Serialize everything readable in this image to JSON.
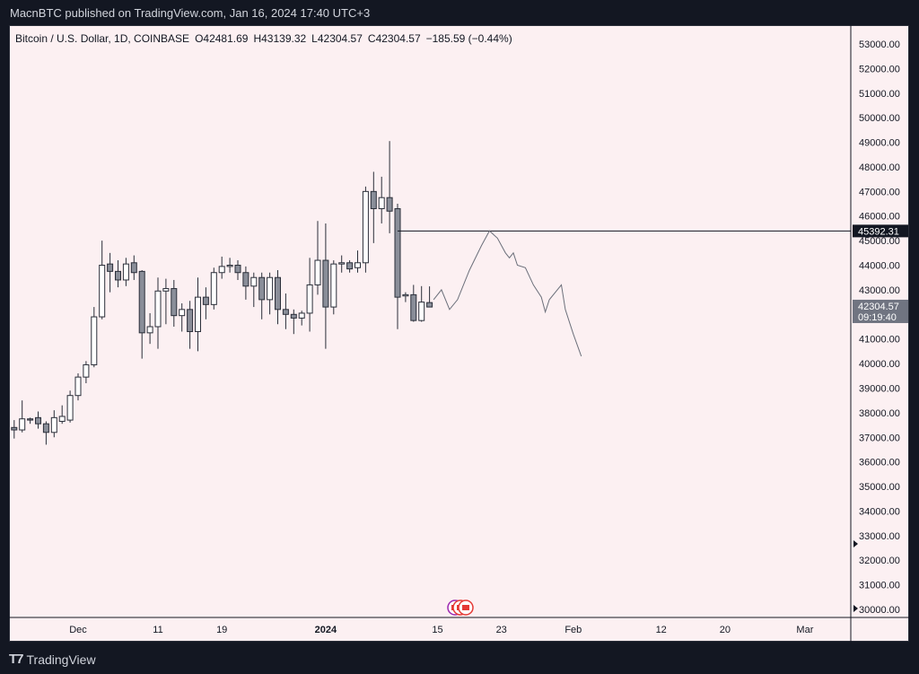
{
  "header": {
    "published": "MacnBTC published on TradingView.com, Jan 16, 2024 17:40 UTC+3"
  },
  "legend": {
    "symbol": "Bitcoin / U.S. Dollar, 1D, COINBASE",
    "open": "O42481.69",
    "high": "H43139.32",
    "low": "L42304.57",
    "close": "C42304.57",
    "change": "−185.59 (−0.44%)"
  },
  "footer": {
    "brand": "TradingView"
  },
  "chart_data": {
    "type": "candlestick",
    "symbol": "Bitcoin / U.S. Dollar, 1D, COINBASE",
    "ylim": [
      29800,
      53600
    ],
    "y_ticks": [
      "53000.00",
      "52000.00",
      "51000.00",
      "50000.00",
      "49000.00",
      "48000.00",
      "47000.00",
      "46000.00",
      "45000.00",
      "44000.00",
      "43000.00",
      "42000.00",
      "41000.00",
      "40000.00",
      "39000.00",
      "38000.00",
      "37000.00",
      "36000.00",
      "35000.00",
      "34000.00",
      "33000.00",
      "32000.00",
      "31000.00",
      "30000.00"
    ],
    "x_ticks": [
      {
        "label": "Dec",
        "day": 0
      },
      {
        "label": "11",
        "day": 10
      },
      {
        "label": "19",
        "day": 18
      },
      {
        "label": "2024",
        "day": 31,
        "bold": true
      },
      {
        "label": "15",
        "day": 45
      },
      {
        "label": "23",
        "day": 53
      },
      {
        "label": "Feb",
        "day": 62
      },
      {
        "label": "12",
        "day": 73
      },
      {
        "label": "20",
        "day": 81
      },
      {
        "label": "Mar",
        "day": 91
      }
    ],
    "candles": [
      {
        "day": -8,
        "o": 37400,
        "h": 37700,
        "l": 36950,
        "c": 37300
      },
      {
        "day": -7,
        "o": 37300,
        "h": 38500,
        "l": 37200,
        "c": 37750
      },
      {
        "day": -6,
        "o": 37750,
        "h": 37800,
        "l": 37550,
        "c": 37700
      },
      {
        "day": -5,
        "o": 37800,
        "h": 38050,
        "l": 37350,
        "c": 37550
      },
      {
        "day": -4,
        "o": 37550,
        "h": 37650,
        "l": 36700,
        "c": 37200
      },
      {
        "day": -3,
        "o": 37200,
        "h": 38100,
        "l": 37000,
        "c": 37800
      },
      {
        "day": -2,
        "o": 37650,
        "h": 38300,
        "l": 37550,
        "c": 37850
      },
      {
        "day": -1,
        "o": 37700,
        "h": 38900,
        "l": 37600,
        "c": 38700
      },
      {
        "day": 0,
        "o": 38700,
        "h": 39600,
        "l": 38500,
        "c": 39450
      },
      {
        "day": 1,
        "o": 39450,
        "h": 40100,
        "l": 39200,
        "c": 39950
      },
      {
        "day": 2,
        "o": 39950,
        "h": 42300,
        "l": 39850,
        "c": 41900
      },
      {
        "day": 3,
        "o": 41900,
        "h": 45000,
        "l": 41800,
        "c": 44000
      },
      {
        "day": 4,
        "o": 44050,
        "h": 44500,
        "l": 42900,
        "c": 43750
      },
      {
        "day": 5,
        "o": 43750,
        "h": 44200,
        "l": 43100,
        "c": 43400
      },
      {
        "day": 6,
        "o": 43400,
        "h": 44300,
        "l": 43150,
        "c": 44050
      },
      {
        "day": 7,
        "o": 44100,
        "h": 44400,
        "l": 43400,
        "c": 43700
      },
      {
        "day": 8,
        "o": 43750,
        "h": 43800,
        "l": 40200,
        "c": 41250
      },
      {
        "day": 9,
        "o": 41250,
        "h": 42050,
        "l": 40800,
        "c": 41500
      },
      {
        "day": 10,
        "o": 41500,
        "h": 43500,
        "l": 40600,
        "c": 42950
      },
      {
        "day": 11,
        "o": 42950,
        "h": 43450,
        "l": 41600,
        "c": 43050
      },
      {
        "day": 12,
        "o": 43050,
        "h": 43400,
        "l": 41500,
        "c": 41950
      },
      {
        "day": 13,
        "o": 41950,
        "h": 42450,
        "l": 41300,
        "c": 42200
      },
      {
        "day": 14,
        "o": 42200,
        "h": 42550,
        "l": 40600,
        "c": 41300
      },
      {
        "day": 15,
        "o": 41300,
        "h": 43500,
        "l": 40500,
        "c": 42700
      },
      {
        "day": 16,
        "o": 42700,
        "h": 43100,
        "l": 41800,
        "c": 42400
      },
      {
        "day": 17,
        "o": 42400,
        "h": 43900,
        "l": 42200,
        "c": 43700
      },
      {
        "day": 18,
        "o": 43700,
        "h": 44350,
        "l": 43450,
        "c": 43950
      },
      {
        "day": 19,
        "o": 43950,
        "h": 44300,
        "l": 43700,
        "c": 44000
      },
      {
        "day": 20,
        "o": 44000,
        "h": 44200,
        "l": 43400,
        "c": 43700
      },
      {
        "day": 21,
        "o": 43700,
        "h": 43950,
        "l": 42600,
        "c": 43150
      },
      {
        "day": 22,
        "o": 43150,
        "h": 43700,
        "l": 42300,
        "c": 43500
      },
      {
        "day": 23,
        "o": 43500,
        "h": 43700,
        "l": 41800,
        "c": 42600
      },
      {
        "day": 24,
        "o": 42600,
        "h": 43700,
        "l": 42000,
        "c": 43500
      },
      {
        "day": 25,
        "o": 43500,
        "h": 43800,
        "l": 41600,
        "c": 42200
      },
      {
        "day": 26,
        "o": 42200,
        "h": 42850,
        "l": 41400,
        "c": 42000
      },
      {
        "day": 27,
        "o": 42000,
        "h": 42200,
        "l": 41200,
        "c": 41850
      },
      {
        "day": 28,
        "o": 41850,
        "h": 42150,
        "l": 41550,
        "c": 42050
      },
      {
        "day": 29,
        "o": 42050,
        "h": 44300,
        "l": 41300,
        "c": 43200
      },
      {
        "day": 30,
        "o": 43200,
        "h": 45800,
        "l": 42800,
        "c": 44200
      },
      {
        "day": 31,
        "o": 44200,
        "h": 45700,
        "l": 40600,
        "c": 42300
      },
      {
        "day": 32,
        "o": 42300,
        "h": 44200,
        "l": 42000,
        "c": 44050
      },
      {
        "day": 33,
        "o": 44050,
        "h": 44400,
        "l": 43700,
        "c": 44100
      },
      {
        "day": 34,
        "o": 44100,
        "h": 44200,
        "l": 43700,
        "c": 43850
      },
      {
        "day": 35,
        "o": 43900,
        "h": 44600,
        "l": 43700,
        "c": 44100
      },
      {
        "day": 36,
        "o": 44100,
        "h": 47200,
        "l": 43700,
        "c": 47000
      },
      {
        "day": 37,
        "o": 47000,
        "h": 47800,
        "l": 44900,
        "c": 46300
      },
      {
        "day": 38,
        "o": 46300,
        "h": 47600,
        "l": 45700,
        "c": 46750
      },
      {
        "day": 39,
        "o": 46750,
        "h": 49050,
        "l": 45300,
        "c": 46200
      },
      {
        "day": 40,
        "o": 46300,
        "h": 46500,
        "l": 41400,
        "c": 42700
      },
      {
        "day": 41,
        "o": 42750,
        "h": 42900,
        "l": 42500,
        "c": 42800
      },
      {
        "day": 42,
        "o": 42800,
        "h": 43200,
        "l": 41700,
        "c": 41750
      },
      {
        "day": 43,
        "o": 41750,
        "h": 43150,
        "l": 41700,
        "c": 42500
      },
      {
        "day": 44,
        "o": 42480,
        "h": 43140,
        "l": 42300,
        "c": 42300
      }
    ],
    "annotations": {
      "horizontal_line": {
        "value": 45392.31,
        "label": "45392.31",
        "from_day": 40
      },
      "last_price": {
        "value": 42304.57,
        "label": "42304.57",
        "countdown": "09:19:40"
      },
      "projection_path": [
        {
          "day": 44.5,
          "price": 42600
        },
        {
          "day": 45.5,
          "price": 43000
        },
        {
          "day": 46.5,
          "price": 42200
        },
        {
          "day": 47.5,
          "price": 42600
        },
        {
          "day": 49,
          "price": 43800
        },
        {
          "day": 50.5,
          "price": 44800
        },
        {
          "day": 51.5,
          "price": 45400
        },
        {
          "day": 52.5,
          "price": 45100
        },
        {
          "day": 53.5,
          "price": 44500
        },
        {
          "day": 54,
          "price": 44300
        },
        {
          "day": 54.5,
          "price": 44500
        },
        {
          "day": 55,
          "price": 44000
        },
        {
          "day": 56,
          "price": 43900
        },
        {
          "day": 57,
          "price": 43200
        },
        {
          "day": 58,
          "price": 42700
        },
        {
          "day": 58.5,
          "price": 42100
        },
        {
          "day": 59,
          "price": 42600
        },
        {
          "day": 60.5,
          "price": 43200
        },
        {
          "day": 61,
          "price": 42200
        },
        {
          "day": 62,
          "price": 41200
        },
        {
          "day": 63,
          "price": 40300
        }
      ]
    }
  }
}
